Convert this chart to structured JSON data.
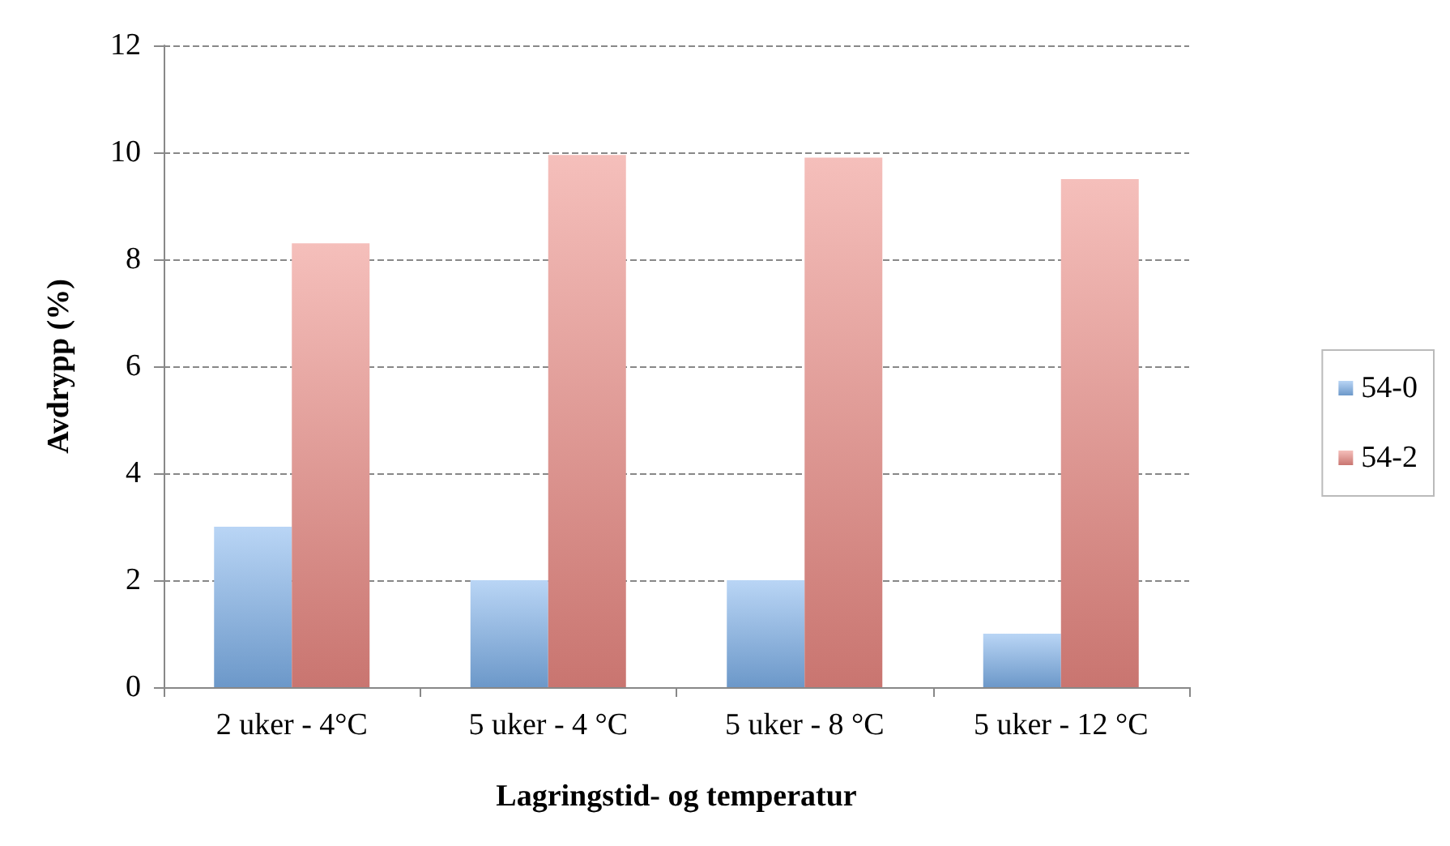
{
  "chart_data": {
    "type": "bar",
    "xlabel": "Lagringstid- og temperatur",
    "ylabel": "Avdrypp (%)",
    "categories": [
      "2 uker - 4°C",
      "5 uker - 4 °C",
      "5 uker - 8 °C",
      "5 uker - 12 °C"
    ],
    "series": [
      {
        "name": "54-0",
        "color": "#7fb3ec",
        "values": [
          3.0,
          2.0,
          2.0,
          1.0
        ]
      },
      {
        "name": "54-2",
        "color": "#ec8a84",
        "values": [
          8.3,
          9.95,
          9.9,
          9.5
        ]
      }
    ],
    "ylim": [
      0,
      12
    ],
    "yticks": [
      0,
      2,
      4,
      6,
      8,
      10,
      12
    ],
    "grid": "y",
    "legend": "right"
  }
}
